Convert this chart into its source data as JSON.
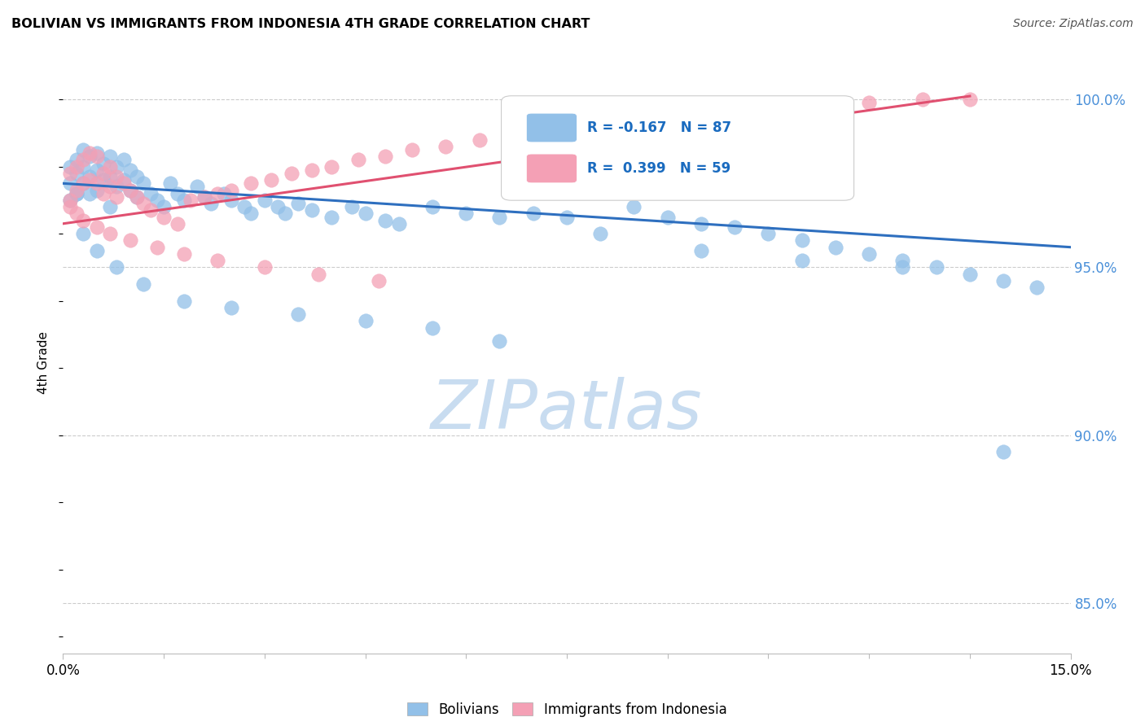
{
  "title": "BOLIVIAN VS IMMIGRANTS FROM INDONESIA 4TH GRADE CORRELATION CHART",
  "source": "Source: ZipAtlas.com",
  "ylabel": "4th Grade",
  "ylabel_ticks": [
    "85.0%",
    "90.0%",
    "95.0%",
    "100.0%"
  ],
  "ylabel_tick_vals": [
    0.85,
    0.9,
    0.95,
    1.0
  ],
  "xmin": 0.0,
  "xmax": 0.15,
  "ymin": 0.835,
  "ymax": 1.008,
  "legend_R_blue": "R = -0.167",
  "legend_N_blue": "N = 87",
  "legend_R_pink": "R =  0.399",
  "legend_N_pink": "N = 59",
  "color_blue": "#92C0E8",
  "color_pink": "#F4A0B5",
  "color_blue_line": "#2E6FBF",
  "color_pink_line": "#E05070",
  "color_legend_text": "#1A6BBF",
  "color_right_axis": "#4A90D9",
  "watermark_color": "#C8DCF0",
  "grid_color": "#CCCCCC",
  "bg_color": "#FFFFFF",
  "blue_scatter_x": [
    0.001,
    0.001,
    0.001,
    0.002,
    0.002,
    0.002,
    0.003,
    0.003,
    0.003,
    0.004,
    0.004,
    0.004,
    0.005,
    0.005,
    0.005,
    0.006,
    0.006,
    0.007,
    0.007,
    0.008,
    0.008,
    0.009,
    0.009,
    0.01,
    0.01,
    0.011,
    0.011,
    0.012,
    0.013,
    0.014,
    0.015,
    0.016,
    0.017,
    0.018,
    0.02,
    0.021,
    0.022,
    0.024,
    0.025,
    0.027,
    0.028,
    0.03,
    0.032,
    0.033,
    0.035,
    0.037,
    0.04,
    0.043,
    0.045,
    0.048,
    0.05,
    0.055,
    0.06,
    0.065,
    0.07,
    0.075,
    0.08,
    0.085,
    0.09,
    0.095,
    0.1,
    0.105,
    0.11,
    0.115,
    0.12,
    0.125,
    0.13,
    0.135,
    0.14,
    0.145,
    0.003,
    0.005,
    0.008,
    0.012,
    0.018,
    0.025,
    0.035,
    0.045,
    0.055,
    0.065,
    0.08,
    0.095,
    0.11,
    0.125,
    0.14,
    0.002,
    0.007
  ],
  "blue_scatter_y": [
    0.98,
    0.975,
    0.97,
    0.982,
    0.978,
    0.972,
    0.985,
    0.98,
    0.975,
    0.983,
    0.977,
    0.972,
    0.984,
    0.979,
    0.973,
    0.981,
    0.976,
    0.983,
    0.977,
    0.98,
    0.974,
    0.982,
    0.976,
    0.979,
    0.973,
    0.977,
    0.971,
    0.975,
    0.972,
    0.97,
    0.968,
    0.975,
    0.972,
    0.97,
    0.974,
    0.971,
    0.969,
    0.972,
    0.97,
    0.968,
    0.966,
    0.97,
    0.968,
    0.966,
    0.969,
    0.967,
    0.965,
    0.968,
    0.966,
    0.964,
    0.963,
    0.968,
    0.966,
    0.965,
    0.966,
    0.965,
    0.973,
    0.968,
    0.965,
    0.963,
    0.962,
    0.96,
    0.958,
    0.956,
    0.954,
    0.952,
    0.95,
    0.948,
    0.946,
    0.944,
    0.96,
    0.955,
    0.95,
    0.945,
    0.94,
    0.938,
    0.936,
    0.934,
    0.932,
    0.928,
    0.96,
    0.955,
    0.952,
    0.95,
    0.895,
    0.972,
    0.968
  ],
  "pink_scatter_x": [
    0.001,
    0.001,
    0.002,
    0.002,
    0.003,
    0.003,
    0.004,
    0.004,
    0.005,
    0.005,
    0.006,
    0.006,
    0.007,
    0.007,
    0.008,
    0.008,
    0.009,
    0.01,
    0.011,
    0.012,
    0.013,
    0.015,
    0.017,
    0.019,
    0.021,
    0.023,
    0.025,
    0.028,
    0.031,
    0.034,
    0.037,
    0.04,
    0.044,
    0.048,
    0.052,
    0.057,
    0.062,
    0.068,
    0.074,
    0.08,
    0.088,
    0.095,
    0.103,
    0.112,
    0.12,
    0.128,
    0.135,
    0.001,
    0.002,
    0.003,
    0.005,
    0.007,
    0.01,
    0.014,
    0.018,
    0.023,
    0.03,
    0.038,
    0.047
  ],
  "pink_scatter_y": [
    0.978,
    0.97,
    0.98,
    0.973,
    0.982,
    0.975,
    0.984,
    0.976,
    0.983,
    0.975,
    0.978,
    0.972,
    0.98,
    0.974,
    0.977,
    0.971,
    0.975,
    0.973,
    0.971,
    0.969,
    0.967,
    0.965,
    0.963,
    0.97,
    0.971,
    0.972,
    0.973,
    0.975,
    0.976,
    0.978,
    0.979,
    0.98,
    0.982,
    0.983,
    0.985,
    0.986,
    0.988,
    0.989,
    0.991,
    0.992,
    0.994,
    0.996,
    0.997,
    0.998,
    0.999,
    1.0,
    1.0,
    0.968,
    0.966,
    0.964,
    0.962,
    0.96,
    0.958,
    0.956,
    0.954,
    0.952,
    0.95,
    0.948,
    0.946
  ],
  "blue_line_x": [
    0.0,
    0.15
  ],
  "blue_line_y": [
    0.975,
    0.956
  ],
  "pink_line_x": [
    0.0,
    0.135
  ],
  "pink_line_y": [
    0.963,
    1.001
  ]
}
